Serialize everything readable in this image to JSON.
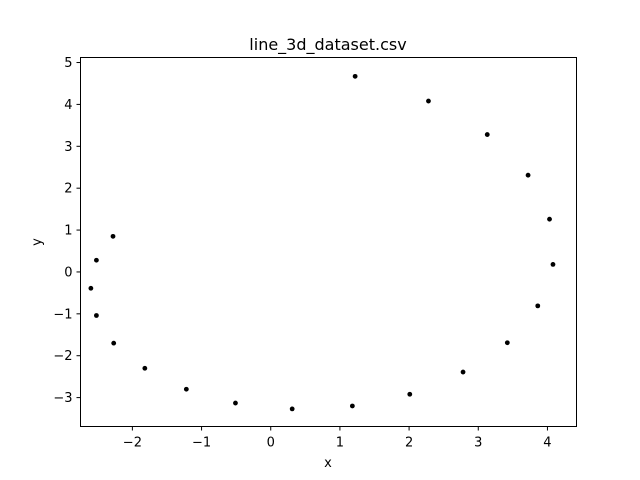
{
  "chart_data": {
    "type": "scatter",
    "title": "line_3d_dataset.csv",
    "xlabel": "x",
    "ylabel": "y",
    "xlim": [
      -2.75,
      4.42
    ],
    "ylim": [
      -3.69,
      5.12
    ],
    "xticks": [
      -2,
      -1,
      0,
      1,
      2,
      3,
      4
    ],
    "yticks": [
      -3,
      -2,
      -1,
      0,
      1,
      2,
      3,
      4,
      5
    ],
    "xtick_labels": [
      "−2",
      "−1",
      "0",
      "1",
      "2",
      "3",
      "4"
    ],
    "ytick_labels": [
      "−3",
      "−2",
      "−1",
      "0",
      "1",
      "2",
      "3",
      "4",
      "5"
    ],
    "grid": false,
    "marker_color": "#000000",
    "x": [
      1.22,
      2.28,
      3.13,
      3.72,
      4.03,
      4.08,
      3.86,
      3.42,
      2.78,
      2.01,
      1.18,
      0.31,
      -0.51,
      -1.22,
      -1.82,
      -2.27,
      -2.52,
      -2.6,
      -2.52,
      -2.28
    ],
    "y": [
      4.67,
      4.08,
      3.28,
      2.31,
      1.26,
      0.18,
      -0.81,
      -1.69,
      -2.39,
      -2.92,
      -3.2,
      -3.27,
      -3.13,
      -2.8,
      -2.3,
      -1.7,
      -1.04,
      -0.39,
      0.28,
      0.85
    ]
  }
}
